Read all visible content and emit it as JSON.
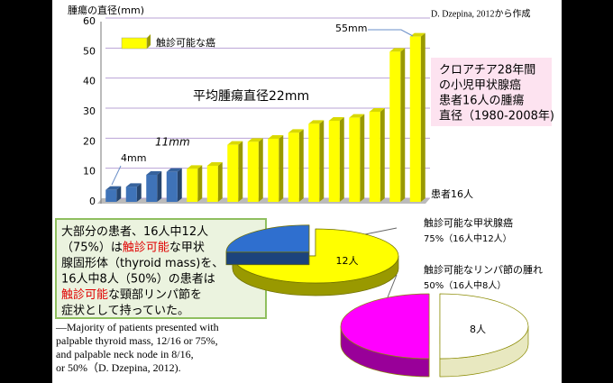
{
  "chart_data": [
    {
      "type": "bar3d",
      "y_label": "腫瘍の直径(mm)",
      "x_label": "患者16人",
      "categories": [
        null,
        null,
        null,
        null,
        null,
        null,
        null,
        null,
        null,
        null,
        null,
        null,
        null,
        null,
        null,
        null
      ],
      "series": [
        {
          "name": "触診可能な癌",
          "color": "#ffff00",
          "colors": [
            "#3f73b8",
            "#3f73b8",
            "#3f73b8",
            "#3f73b8",
            "#ffff00",
            "#ffff00",
            "#ffff00",
            "#ffff00",
            "#ffff00",
            "#ffff00",
            "#ffff00",
            "#ffff00",
            "#ffff00",
            "#ffff00",
            "#ffff00",
            "#ffff00"
          ],
          "values": [
            4,
            5,
            9,
            10,
            11,
            12,
            19,
            20,
            21,
            23,
            26,
            27,
            28,
            30,
            50,
            55
          ]
        }
      ],
      "ylim": [
        0,
        60
      ],
      "yticks": [
        0,
        10,
        20,
        30,
        40,
        50,
        60
      ],
      "grid": true,
      "annotations": [
        {
          "text": "55mm",
          "color": "#000000"
        },
        {
          "text": "4mm",
          "color": "#000000"
        },
        {
          "text": "11mm",
          "color": "#e00000"
        },
        {
          "text": "平均腫瘍直径22mm",
          "color": "#e00000"
        }
      ]
    },
    {
      "type": "pie3d",
      "title": "触診可能な甲状腺癌",
      "subtitle": "75%（16人中12人）",
      "values": [
        12,
        4
      ],
      "value_labels": [
        "12人",
        null
      ],
      "colors": [
        "#ffff00",
        "#2f6fcf"
      ],
      "edge_color": "#6e6e00"
    },
    {
      "type": "pie3d",
      "title": "触診可能なリンパ節の腫れ",
      "subtitle": "50%（16人中8人）",
      "values": [
        8,
        8
      ],
      "value_labels": [
        "8人",
        null
      ],
      "colors": [
        "#ffffff",
        "#ff00ff"
      ],
      "edge_color": "#8a8a00"
    }
  ],
  "source": "D. Dzepina, 2012から作成",
  "info_box": [
    "クロアチア28年間",
    "の小児甲状腺癌",
    "患者16人の腫瘍",
    "直径（1980-2008年)"
  ],
  "summary_box": [
    [
      {
        "text": "大部分の患者、16人中12人",
        "color": "#000000"
      }
    ],
    [
      {
        "text": "（75%）は",
        "color": "#000000"
      },
      {
        "text": "触診可能",
        "color": "#e00000"
      },
      {
        "text": "な甲状",
        "color": "#000000"
      }
    ],
    [
      {
        "text": "腺固形体（thyroid mass)を、",
        "color": "#000000"
      }
    ],
    [
      {
        "text": "16人中8人（50%）の患者は",
        "color": "#000000"
      }
    ],
    [
      {
        "text": "触診可能",
        "color": "#e00000"
      },
      {
        "text": "な頸部リンパ節を",
        "color": "#000000"
      }
    ],
    [
      {
        "text": "症状として持っていた。",
        "color": "#000000"
      }
    ]
  ],
  "english_note": [
    "—Majority of patients presented with",
    "palpable thyroid mass, 12/16 or 75%,",
    "and palpable neck node in 8/16,",
    "or 50%（D. Dzepina, 2012)."
  ]
}
